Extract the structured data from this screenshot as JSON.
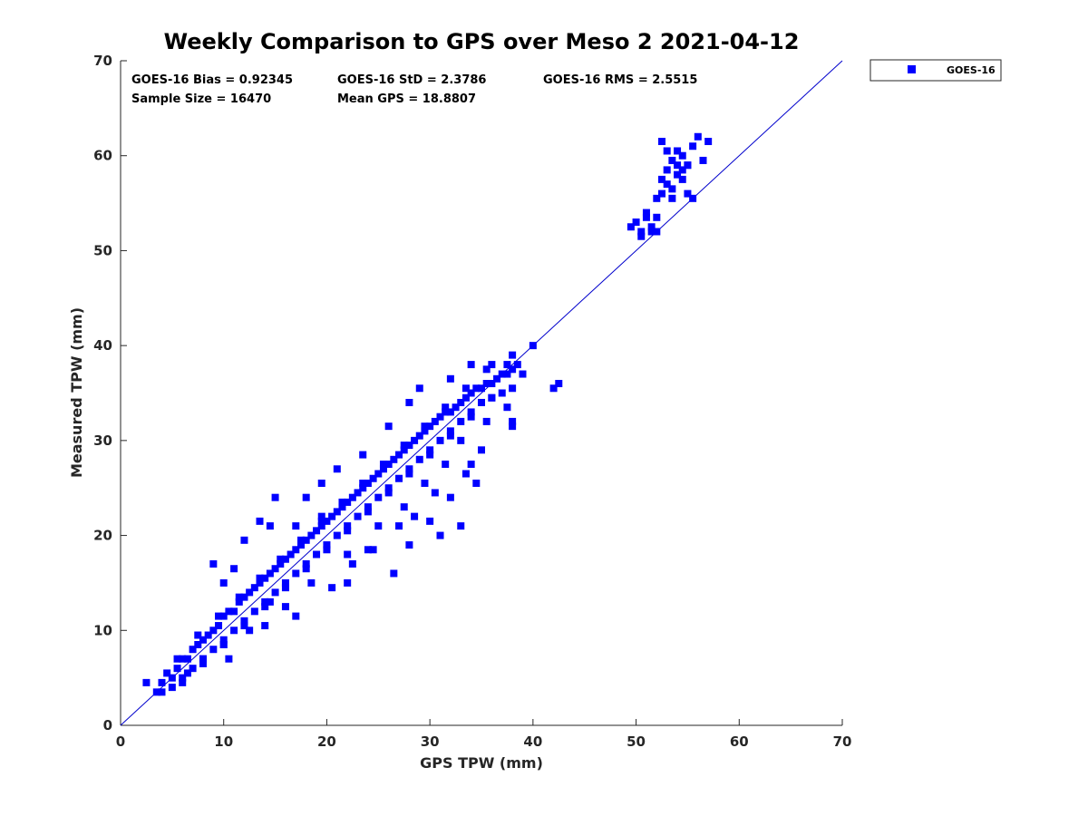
{
  "chart_data": {
    "type": "scatter",
    "title": "Weekly Comparison to GPS over Meso 2 2021-04-12",
    "xlabel": "GPS TPW (mm)",
    "ylabel": "Measured TPW (mm)",
    "xlim": [
      0,
      70
    ],
    "ylim": [
      0,
      70
    ],
    "xticks": [
      "0",
      "10",
      "20",
      "30",
      "40",
      "50",
      "60",
      "70"
    ],
    "yticks": [
      "0",
      "10",
      "20",
      "30",
      "40",
      "50",
      "60",
      "70"
    ],
    "grid": false,
    "legend": {
      "position": "outside-top-right",
      "entries": [
        "GOES-16"
      ]
    },
    "reference_line": {
      "label": "1:1",
      "from": [
        0,
        0
      ],
      "to": [
        70,
        70
      ],
      "color": "#0000cc"
    },
    "stats": {
      "bias": "GOES-16 Bias = 0.92345",
      "std": "GOES-16 StD = 2.3786",
      "rms": "GOES-16 RMS = 2.5515",
      "sample_size": "Sample Size = 16470",
      "mean_gps": "Mean GPS = 18.8807"
    },
    "series": [
      {
        "name": "GOES-16",
        "color": "#0000ff",
        "marker": "square",
        "x": [
          2.5,
          3.5,
          4.0,
          4.5,
          5.0,
          5.5,
          6.0,
          6.5,
          7.0,
          7.5,
          8.0,
          8.5,
          9.0,
          9.5,
          10.0,
          10.5,
          11.0,
          11.5,
          12.0,
          12.5,
          13.0,
          13.5,
          14.0,
          14.5,
          15.0,
          15.5,
          16.0,
          16.5,
          17.0,
          17.5,
          18.0,
          18.5,
          19.0,
          19.5,
          20.0,
          20.5,
          21.0,
          21.5,
          22.0,
          22.5,
          23.0,
          23.5,
          24.0,
          24.5,
          25.0,
          25.5,
          26.0,
          26.5,
          27.0,
          27.5,
          28.0,
          28.5,
          29.0,
          29.5,
          30.0,
          30.5,
          31.0,
          31.5,
          32.0,
          32.5,
          33.0,
          33.5,
          34.0,
          34.5,
          35.0,
          35.5,
          36.0,
          36.5,
          37.0,
          37.5,
          38.0,
          38.5,
          4.0,
          5.0,
          6.0,
          7.0,
          8.0,
          9.0,
          10.0,
          11.0,
          12.0,
          13.0,
          14.0,
          15.0,
          16.0,
          17.0,
          18.0,
          19.0,
          20.0,
          21.0,
          22.0,
          23.0,
          24.0,
          25.0,
          26.0,
          27.0,
          28.0,
          29.0,
          30.0,
          31.0,
          32.0,
          33.0,
          34.0,
          35.0,
          36.0,
          37.0,
          38.0,
          5.5,
          7.5,
          9.5,
          11.5,
          13.5,
          15.5,
          17.5,
          19.5,
          21.5,
          23.5,
          25.5,
          27.5,
          29.5,
          31.5,
          33.5,
          35.5,
          37.5,
          6.0,
          8.0,
          10.0,
          12.0,
          14.0,
          16.0,
          18.0,
          20.0,
          22.0,
          24.0,
          26.0,
          28.0,
          30.0,
          32.0,
          34.0,
          36.0,
          10.0,
          11.0,
          14.5,
          18.0,
          19.5,
          21.0,
          23.5,
          26.0,
          28.0,
          29.0,
          32.0,
          34.0,
          36.0,
          38.0,
          39.0,
          6.5,
          8.0,
          10.0,
          12.5,
          16.0,
          18.5,
          22.0,
          25.0,
          27.5,
          29.5,
          31.5,
          33.0,
          35.5,
          37.5,
          40.0,
          42.0,
          42.5,
          14.0,
          17.0,
          20.5,
          22.5,
          24.5,
          27.0,
          28.5,
          30.5,
          33.5,
          34.0,
          35.0,
          38.0,
          38.0,
          10.5,
          14.5,
          22.0,
          24.0,
          30.0,
          32.0,
          34.5,
          28.0,
          31.0,
          33.0,
          26.5,
          9.0,
          12.0,
          13.5,
          15.0,
          17.0,
          19.5,
          49.5,
          50.0,
          50.5,
          51.0,
          51.5,
          52.0,
          52.5,
          53.0,
          53.5,
          54.0,
          54.5,
          55.0,
          55.5,
          56.0,
          57.0,
          50.5,
          51.5,
          52.0,
          53.0,
          53.5,
          54.0,
          55.0,
          52.5,
          54.5,
          56.5,
          52.0,
          53.5,
          55.5,
          51.0,
          54.0,
          55.0,
          53.0,
          54.5,
          52.5
        ],
        "y": [
          4.5,
          3.5,
          4.5,
          5.5,
          5.0,
          6.0,
          7.0,
          7.0,
          8.0,
          8.5,
          9.0,
          9.5,
          10.0,
          10.5,
          11.5,
          12.0,
          12.0,
          13.0,
          13.5,
          14.0,
          14.5,
          15.0,
          15.5,
          16.0,
          16.5,
          17.0,
          17.5,
          18.0,
          18.5,
          19.0,
          19.5,
          20.0,
          20.5,
          21.0,
          21.5,
          22.0,
          22.5,
          23.0,
          23.5,
          24.0,
          24.5,
          25.0,
          25.5,
          26.0,
          26.5,
          27.0,
          27.5,
          28.0,
          28.5,
          29.0,
          29.5,
          30.0,
          30.5,
          31.0,
          31.5,
          32.0,
          32.5,
          33.0,
          33.0,
          33.5,
          34.0,
          34.5,
          35.0,
          35.5,
          35.5,
          36.0,
          36.0,
          36.5,
          37.0,
          37.0,
          37.5,
          38.0,
          3.5,
          4.0,
          5.0,
          6.0,
          7.0,
          8.0,
          9.0,
          10.0,
          11.0,
          12.0,
          13.0,
          14.0,
          15.0,
          16.0,
          17.0,
          18.0,
          19.0,
          20.0,
          21.0,
          22.0,
          23.0,
          24.0,
          25.0,
          26.0,
          27.0,
          28.0,
          29.0,
          30.0,
          31.0,
          32.0,
          33.0,
          34.0,
          34.5,
          35.0,
          35.5,
          7.0,
          9.5,
          11.5,
          13.5,
          15.5,
          17.5,
          19.5,
          21.5,
          23.5,
          25.5,
          27.5,
          29.5,
          31.5,
          33.5,
          35.5,
          37.5,
          38.0,
          4.5,
          6.5,
          8.5,
          10.5,
          12.5,
          14.5,
          16.5,
          18.5,
          20.5,
          22.5,
          24.5,
          26.5,
          28.5,
          30.5,
          32.5,
          34.5,
          15.0,
          16.5,
          21.0,
          24.0,
          25.5,
          27.0,
          28.5,
          31.5,
          34.0,
          35.5,
          36.5,
          38.0,
          38.0,
          39.0,
          37.0,
          5.5,
          7.0,
          8.5,
          10.0,
          12.5,
          15.0,
          18.0,
          21.0,
          23.0,
          25.5,
          27.5,
          30.0,
          32.0,
          33.5,
          40.0,
          35.5,
          36.0,
          10.5,
          11.5,
          14.5,
          17.0,
          18.5,
          21.0,
          22.0,
          24.5,
          26.5,
          27.5,
          29.0,
          31.5,
          32.0,
          7.0,
          13.0,
          15.0,
          18.5,
          21.5,
          24.0,
          25.5,
          19.0,
          20.0,
          21.0,
          16.0,
          17.0,
          19.5,
          21.5,
          24.0,
          21.0,
          22.0,
          52.5,
          53.0,
          52.0,
          54.0,
          52.5,
          53.5,
          56.0,
          57.0,
          55.5,
          58.0,
          60.0,
          59.0,
          61.0,
          62.0,
          61.5,
          51.5,
          52.0,
          55.5,
          58.5,
          59.5,
          60.5,
          59.0,
          61.5,
          57.5,
          59.5,
          52.0,
          56.5,
          55.5,
          53.5,
          59.0,
          56.0,
          60.5,
          58.5,
          57.5
        ]
      }
    ]
  }
}
